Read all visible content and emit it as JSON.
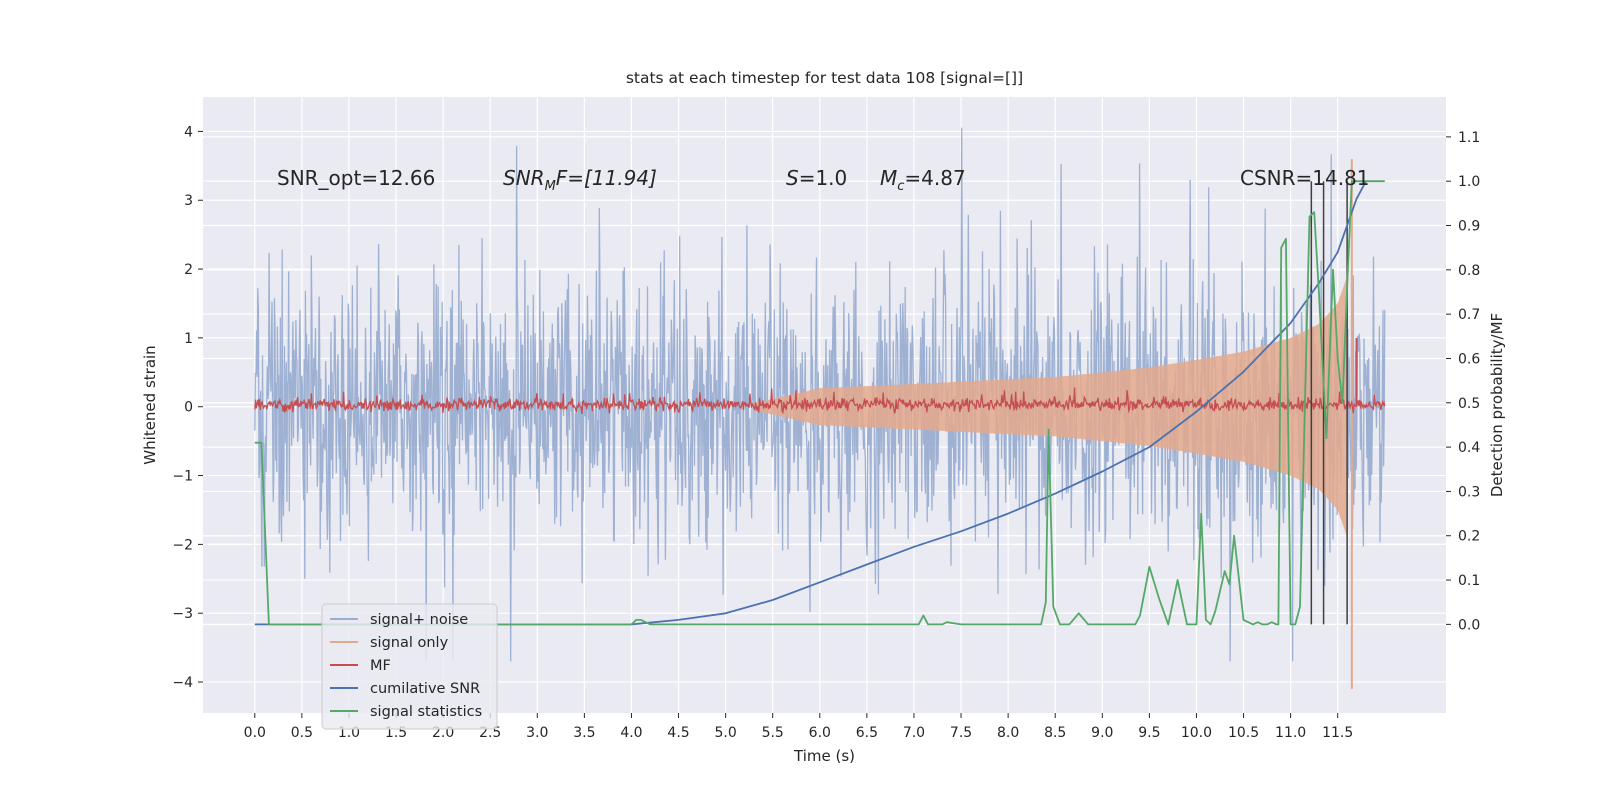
{
  "chart_data": {
    "type": "line",
    "title": "stats at each timestep for test data 108 [signal=[]]",
    "xlabel": "Time (s)",
    "ylabel": "Whitened strain",
    "y2label": "Detection probability/MF",
    "xlim": [
      -0.55,
      12.65
    ],
    "ylim": [
      -4.45,
      4.5
    ],
    "y2lim": [
      -0.2,
      1.19
    ],
    "grid": true,
    "legend_position": "lower-left",
    "x_ticks": [
      0.0,
      0.5,
      1.0,
      1.5,
      2.0,
      2.5,
      3.0,
      3.5,
      4.0,
      4.5,
      5.0,
      5.5,
      6.0,
      6.5,
      7.0,
      7.5,
      8.0,
      8.5,
      9.0,
      9.5,
      10.0,
      10.5,
      11.0,
      11.5
    ],
    "x_tick_labels": [
      "0.0",
      "0.5",
      "1.0",
      "1.5",
      "2.0",
      "2.5",
      "3.0",
      "3.5",
      "4.0",
      "4.5",
      "5.0",
      "5.5",
      "6.0",
      "6.5",
      "7.0",
      "7.5",
      "8.0",
      "8.5",
      "9.0",
      "9.5",
      "10.0",
      "10.5",
      "11.0",
      "11.5"
    ],
    "y_ticks": [
      4,
      3,
      2,
      1,
      0,
      -1,
      -2,
      -3,
      -4
    ],
    "y_tick_labels": [
      "4",
      "3",
      "2",
      "1",
      "0",
      "−1",
      "−2",
      "−3",
      "−4"
    ],
    "y2_ticks": [
      1.1,
      1.0,
      0.9,
      0.8,
      0.7,
      0.6,
      0.5,
      0.4,
      0.3,
      0.2,
      0.1,
      0.0
    ],
    "y2_tick_labels": [
      "1.1",
      "1.0",
      "0.9",
      "0.8",
      "0.7",
      "0.6",
      "0.5",
      "0.4",
      "0.3",
      "0.2",
      "0.1",
      "0.0"
    ],
    "annotations": {
      "snr_opt": "SNR_opt=12.66",
      "snr_mf_sym": "SNR",
      "snr_mf_sub": "M",
      "snr_mf_rest": "F=[11.94]",
      "s_sym": "S",
      "s_rest": "=1.0",
      "mc_sym": "M",
      "mc_sub": "c",
      "mc_rest": "=4.87",
      "csnr": "CSNR=14.81"
    },
    "time_range": [
      0.0,
      12.0
    ],
    "series": [
      {
        "name": "signal+ noise",
        "color": "#9aaed1",
        "kind": "noisy",
        "axis": "left",
        "typical_range": [
          -1.3,
          1.3
        ],
        "peak_range": [
          -3.7,
          4.1
        ]
      },
      {
        "name": "signal only",
        "color": "#e4a98c",
        "kind": "chirp_envelope",
        "axis": "left",
        "envelope": {
          "x": [
            5.3,
            6.0,
            7.0,
            8.0,
            8.5,
            9.0,
            9.5,
            10.0,
            10.5,
            11.0,
            11.3,
            11.5,
            11.6,
            11.65,
            11.7
          ],
          "amplitude": [
            0.05,
            0.27,
            0.33,
            0.4,
            0.43,
            0.5,
            0.57,
            0.68,
            0.8,
            1.0,
            1.2,
            1.5,
            1.9,
            3.6,
            4.1
          ]
        }
      },
      {
        "name": "MF",
        "color": "#c44e52",
        "kind": "small_noise",
        "axis": "left",
        "typical_range": [
          -0.1,
          0.15
        ],
        "peak": {
          "x": 11.7,
          "y": 1.0
        }
      },
      {
        "name": "cumilative SNR",
        "color": "#4c72b0",
        "kind": "line",
        "axis": "right",
        "x": [
          0.0,
          4.0,
          4.5,
          5.0,
          5.5,
          6.0,
          6.5,
          7.0,
          7.5,
          8.0,
          8.5,
          9.0,
          9.5,
          10.0,
          10.5,
          11.0,
          11.3,
          11.5,
          11.7,
          11.8
        ],
        "y": [
          0.0,
          0.0,
          0.01,
          0.025,
          0.055,
          0.095,
          0.135,
          0.175,
          0.21,
          0.25,
          0.295,
          0.345,
          0.4,
          0.48,
          0.57,
          0.68,
          0.77,
          0.84,
          0.96,
          1.0
        ]
      },
      {
        "name": "signal statistics",
        "color": "#55a868",
        "kind": "line",
        "axis": "right",
        "x": [
          0.0,
          0.07,
          0.15,
          4.0,
          4.05,
          4.1,
          4.2,
          7.05,
          7.1,
          7.15,
          7.3,
          7.35,
          7.5,
          8.35,
          8.4,
          8.43,
          8.48,
          8.55,
          8.65,
          8.75,
          8.85,
          9.0,
          9.35,
          9.4,
          9.5,
          9.6,
          9.7,
          9.8,
          9.9,
          10.0,
          10.05,
          10.1,
          10.15,
          10.2,
          10.3,
          10.35,
          10.4,
          10.5,
          10.6,
          10.65,
          10.7,
          10.75,
          10.8,
          10.85,
          10.87,
          10.9,
          10.95,
          11.0,
          11.05,
          11.1,
          11.2,
          11.25,
          11.3,
          11.38,
          11.45,
          11.5,
          11.55,
          11.6,
          11.65,
          11.7,
          11.75,
          11.8,
          12.0
        ],
        "y": [
          0.41,
          0.41,
          0.0,
          0.0,
          0.01,
          0.01,
          0.0,
          0.0,
          0.02,
          0.0,
          0.0,
          0.005,
          0.0,
          0.0,
          0.05,
          0.44,
          0.04,
          0.0,
          0.0,
          0.025,
          0.0,
          0.0,
          0.0,
          0.02,
          0.13,
          0.06,
          0.0,
          0.1,
          0.0,
          0.0,
          0.25,
          0.01,
          0.0,
          0.03,
          0.12,
          0.09,
          0.2,
          0.01,
          0.0,
          0.005,
          0.0,
          0.0,
          0.005,
          0.0,
          0.0,
          0.85,
          0.87,
          0.0,
          0.0,
          0.04,
          0.92,
          0.93,
          0.75,
          0.42,
          0.8,
          0.6,
          0.5,
          0.76,
          1.0,
          1.0,
          1.0,
          1.0,
          1.0
        ]
      }
    ],
    "vertical_lines": {
      "color": "#404040",
      "x": [
        11.22,
        11.35,
        11.6
      ],
      "y_top": 1.0,
      "y_bottom": 0.0
    }
  }
}
